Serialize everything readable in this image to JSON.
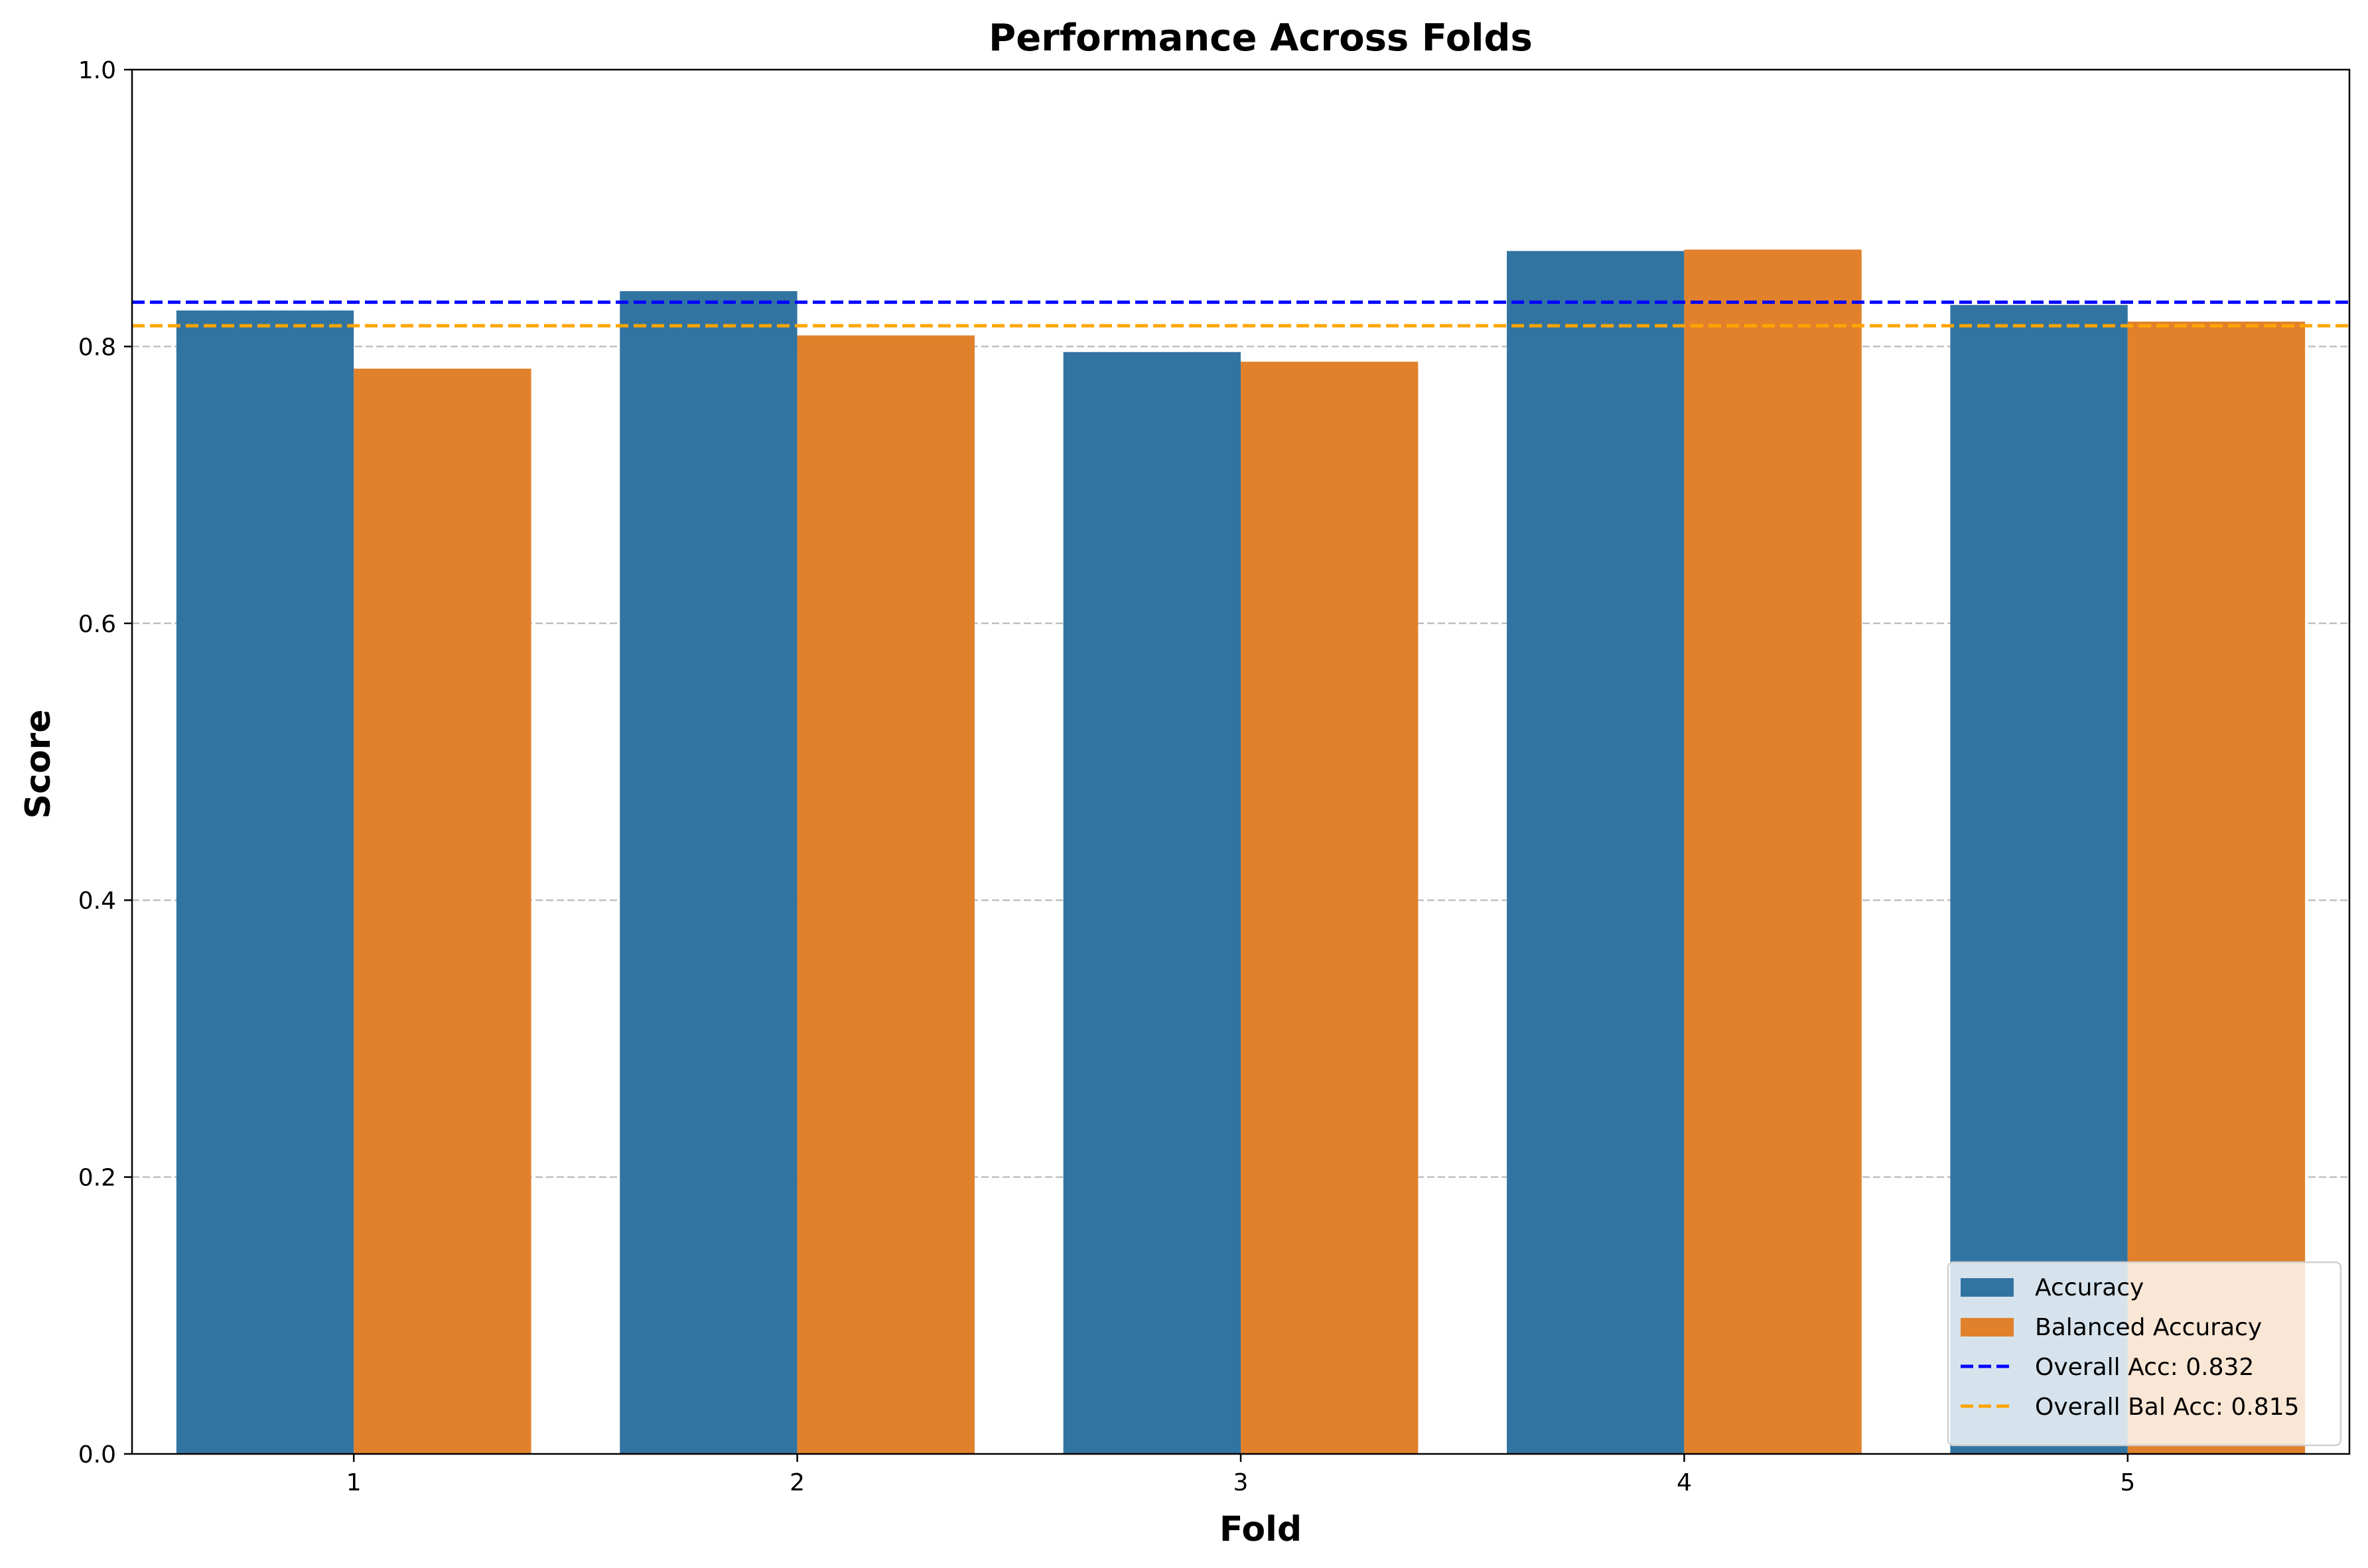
{
  "chart_data": {
    "type": "bar",
    "title": "Performance Across Folds",
    "xlabel": "Fold",
    "ylabel": "Score",
    "categories": [
      "1",
      "2",
      "3",
      "4",
      "5"
    ],
    "series": [
      {
        "name": "Accuracy",
        "color": "#3274a1",
        "values": [
          0.826,
          0.84,
          0.796,
          0.869,
          0.83
        ]
      },
      {
        "name": "Balanced Accuracy",
        "color": "#e1812c",
        "values": [
          0.784,
          0.808,
          0.789,
          0.87,
          0.818
        ]
      }
    ],
    "reference_lines": [
      {
        "name": "Overall Acc: 0.832",
        "value": 0.832,
        "color": "#0000ff",
        "style": "dashed"
      },
      {
        "name": "Overall Bal Acc: 0.815",
        "value": 0.815,
        "color": "#ffa500",
        "style": "dashed"
      }
    ],
    "ylim": [
      0,
      1.0
    ],
    "yticks": [
      "0.0",
      "0.2",
      "0.4",
      "0.6",
      "0.8",
      "1.0"
    ],
    "grid": "y-dashed",
    "legend_position": "lower-right"
  }
}
